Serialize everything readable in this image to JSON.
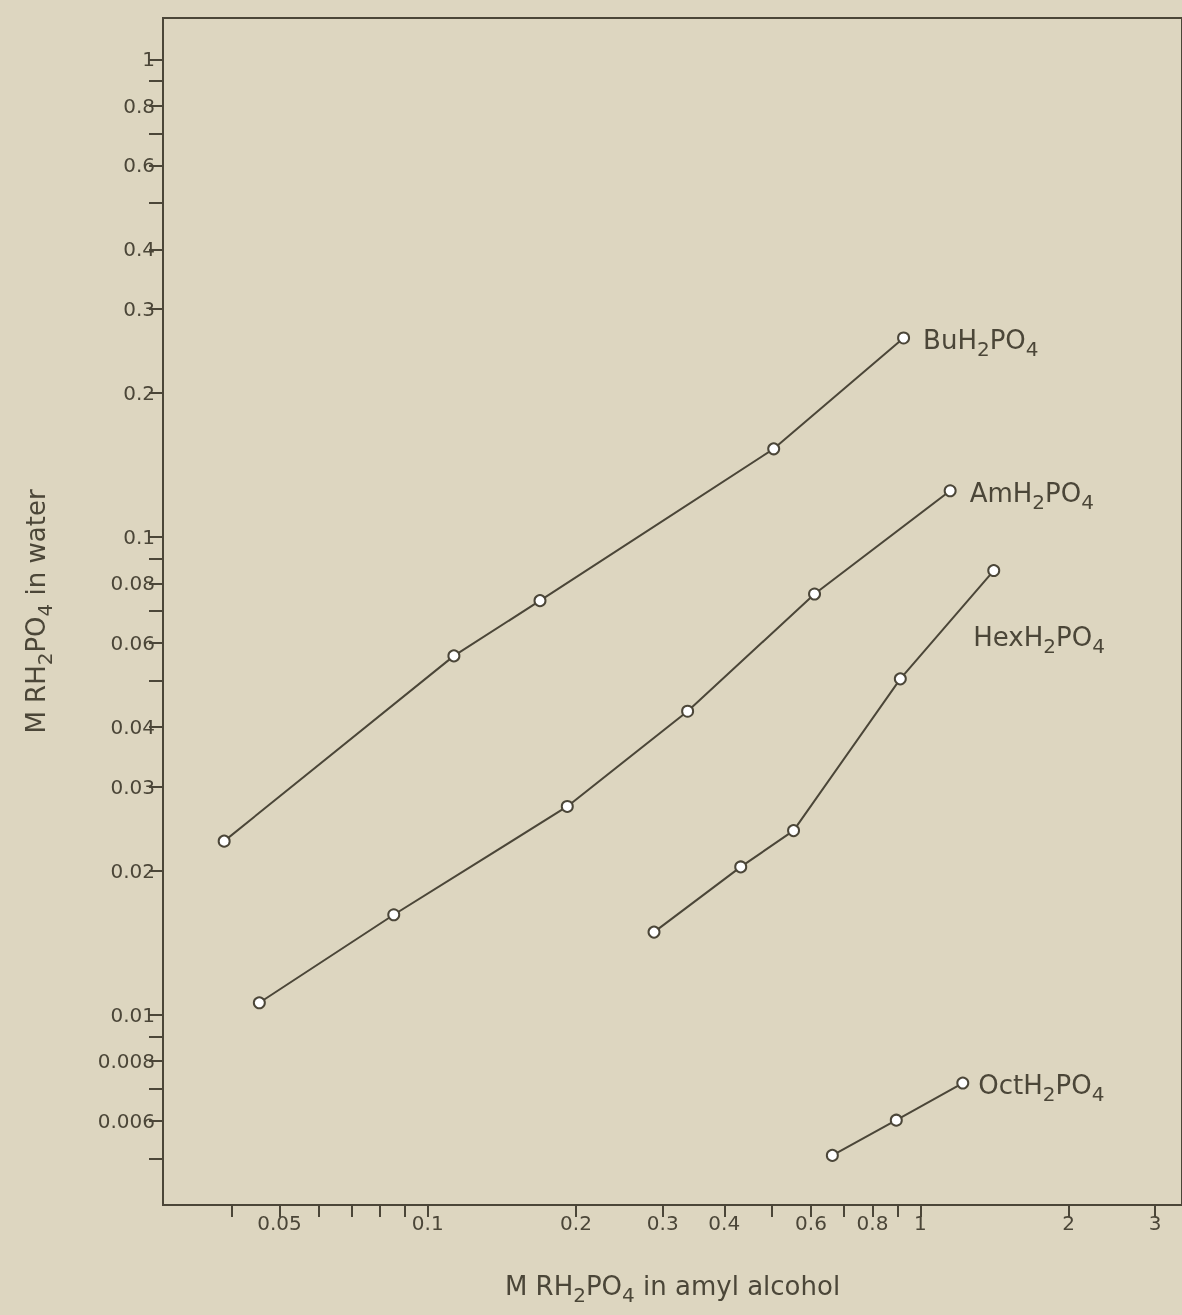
{
  "chart_data": {
    "type": "line",
    "xlabel": "M RH$_{2}$PO$_{4}$ in amyl alcohol",
    "ylabel": "M RH$_{2}$PO$_{4}$ in water",
    "log": "xy",
    "grid": false,
    "legend": false,
    "marker": "circle",
    "line_style": "solid",
    "xlim": [
      0.029,
      3.4
    ],
    "ylim": [
      0.004,
      1.22
    ],
    "xticks": [
      {
        "value": 0.04,
        "label": null
      },
      0.05,
      {
        "value": 0.06,
        "label": null
      },
      {
        "value": 0.07,
        "label": null
      },
      {
        "value": 0.08,
        "label": null
      },
      {
        "value": 0.09,
        "label": null
      },
      0.1,
      0.2,
      0.3,
      0.4,
      {
        "value": 0.5,
        "label": null
      },
      0.6,
      {
        "value": 0.7,
        "label": null
      },
      0.8,
      {
        "value": 0.9,
        "label": null
      },
      1,
      2,
      3
    ],
    "yticks": [
      {
        "value": 0.005,
        "label": null
      },
      0.006,
      {
        "value": 0.007,
        "label": null
      },
      0.008,
      {
        "value": 0.009,
        "label": null
      },
      0.01,
      0.02,
      0.03,
      0.04,
      {
        "value": 0.05,
        "label": null
      },
      0.06,
      {
        "value": 0.07,
        "label": null
      },
      0.08,
      {
        "value": 0.09,
        "label": null
      },
      0.1,
      0.2,
      0.3,
      0.4,
      {
        "value": 0.5,
        "label": null
      },
      0.6,
      {
        "value": 0.7,
        "label": null
      },
      0.8,
      {
        "value": 0.9,
        "label": null
      },
      1
    ],
    "series": [
      {
        "name": "BuH$_{2}$PO$_{4}$",
        "color": "#4b4638",
        "x": [
          0.0386,
          0.113,
          0.169,
          0.504,
          0.925
        ],
        "values": [
          0.0231,
          0.0564,
          0.0736,
          0.153,
          0.261
        ]
      },
      {
        "name": "AmH$_{2}$PO$_{4}$",
        "color": "#4b4638",
        "x": [
          0.0455,
          0.0853,
          0.192,
          0.337,
          0.61,
          1.15
        ],
        "values": [
          0.0106,
          0.0162,
          0.0273,
          0.0432,
          0.076,
          0.125
        ]
      },
      {
        "name": "HexH$_{2}$PO$_{4}$",
        "color": "#4b4638",
        "x": [
          0.288,
          0.432,
          0.553,
          0.911,
          1.41
        ],
        "values": [
          0.0149,
          0.0204,
          0.0243,
          0.0505,
          0.0851
        ]
      },
      {
        "name": "OctH$_{2}$PO$_{4}$",
        "color": "#4b4638",
        "x": [
          0.663,
          0.894,
          1.22
        ],
        "values": [
          0.00508,
          0.00602,
          0.0072
        ]
      }
    ]
  }
}
